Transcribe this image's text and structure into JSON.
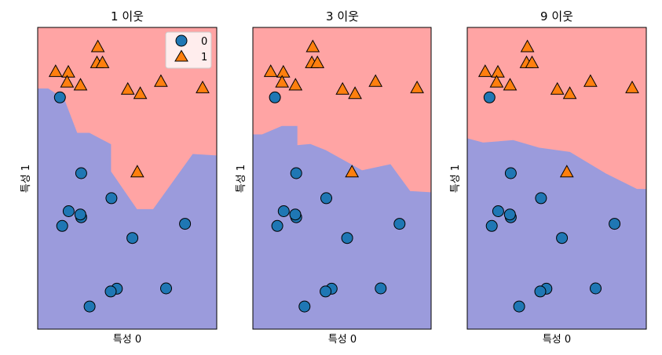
{
  "chart_data": [
    {
      "type": "scatter",
      "title": "1 이웃",
      "xlabel": "특성 0",
      "ylabel": "특성 1",
      "xlim": [
        0,
        100
      ],
      "ylim": [
        0,
        100
      ],
      "ticks": "hidden",
      "legend": {
        "placement": "top-right",
        "entries": [
          {
            "label": "0",
            "marker": "circle",
            "color": "#1f77b4"
          },
          {
            "label": "1",
            "marker": "triangle",
            "color": "#ff7f0e"
          }
        ]
      },
      "regions": [
        {
          "class": "1",
          "color": "#ffa4a4"
        },
        {
          "class": "0",
          "color": "#9b9bdc"
        }
      ],
      "boundary": [
        [
          0,
          79.6
        ],
        [
          5.8,
          79.6
        ],
        [
          14.6,
          76.2
        ],
        [
          21.9,
          64.9
        ],
        [
          28.8,
          64.9
        ],
        [
          40.7,
          61.2
        ],
        [
          40.7,
          52.2
        ],
        [
          55.3,
          39.6
        ],
        [
          64.6,
          39.6
        ],
        [
          86.7,
          57.9
        ],
        [
          100,
          57.4
        ]
      ],
      "series": [
        {
          "name": "0",
          "marker": "circle",
          "color": "#1f77b4",
          "x": [
            12.4,
            24.3,
            17.3,
            24.3,
            13.7,
            23.8,
            41.2,
            52.9,
            82.3,
            71.7,
            44.2,
            40.8,
            29.0
          ],
          "y": [
            76.8,
            51.7,
            39.1,
            37.1,
            34.2,
            38.0,
            43.4,
            30.2,
            34.9,
            13.5,
            13.4,
            12.5,
            7.5
          ]
        },
        {
          "name": "1",
          "marker": "triangle",
          "color": "#ff7f0e",
          "x": [
            33.6,
            33.1,
            36.2,
            10.0,
            17.1,
            16.4,
            23.9,
            50.3,
            68.8,
            57.3,
            92.1,
            55.6
          ],
          "y": [
            93.5,
            88.2,
            88.2,
            85.3,
            85.1,
            81.8,
            80.8,
            79.4,
            82.0,
            78.0,
            79.9,
            52.0
          ]
        }
      ]
    },
    {
      "type": "scatter",
      "title": "3 이웃",
      "xlabel": "특성 0",
      "ylabel": "특성 1",
      "xlim": [
        0,
        100
      ],
      "ylim": [
        0,
        100
      ],
      "ticks": "hidden",
      "regions": [
        {
          "class": "1",
          "color": "#ffa4a4"
        },
        {
          "class": "0",
          "color": "#9b9bdc"
        }
      ],
      "boundary": [
        [
          0,
          64.4
        ],
        [
          5.3,
          64.4
        ],
        [
          16.3,
          67.2
        ],
        [
          24.7,
          67.2
        ],
        [
          24.7,
          60.8
        ],
        [
          32.2,
          61.2
        ],
        [
          40.7,
          59.2
        ],
        [
          61.2,
          52.5
        ],
        [
          77.1,
          54.5
        ],
        [
          88.1,
          45.6
        ],
        [
          100,
          45.2
        ]
      ],
      "series": [
        {
          "name": "0",
          "marker": "circle",
          "color": "#1f77b4",
          "x": [
            12.4,
            24.3,
            17.3,
            24.3,
            13.7,
            23.8,
            41.2,
            52.9,
            82.3,
            71.7,
            44.2,
            40.8,
            29.0
          ],
          "y": [
            76.8,
            51.7,
            39.1,
            37.1,
            34.2,
            38.0,
            43.4,
            30.2,
            34.9,
            13.5,
            13.4,
            12.5,
            7.5
          ]
        },
        {
          "name": "1",
          "marker": "triangle",
          "color": "#ff7f0e",
          "x": [
            33.6,
            33.1,
            36.2,
            10.0,
            17.1,
            16.4,
            23.9,
            50.3,
            68.8,
            57.3,
            92.1,
            55.6
          ],
          "y": [
            93.5,
            88.2,
            88.2,
            85.3,
            85.1,
            81.8,
            80.8,
            79.4,
            82.0,
            78.0,
            79.9,
            52.0
          ]
        }
      ]
    },
    {
      "type": "scatter",
      "title": "9 이웃",
      "xlabel": "특성 0",
      "ylabel": "특성 1",
      "xlim": [
        0,
        100
      ],
      "ylim": [
        0,
        100
      ],
      "ticks": "hidden",
      "regions": [
        {
          "class": "1",
          "color": "#ffa4a4"
        },
        {
          "class": "0",
          "color": "#9b9bdc"
        }
      ],
      "boundary": [
        [
          0,
          63.1
        ],
        [
          8.8,
          61.7
        ],
        [
          25.6,
          62.5
        ],
        [
          40.0,
          60.0
        ],
        [
          57.3,
          58.6
        ],
        [
          77.1,
          51.5
        ],
        [
          94.7,
          46.3
        ],
        [
          100,
          46.3
        ]
      ],
      "series": [
        {
          "name": "0",
          "marker": "circle",
          "color": "#1f77b4",
          "x": [
            12.4,
            24.3,
            17.3,
            24.3,
            13.7,
            23.8,
            41.2,
            52.9,
            82.3,
            71.7,
            44.2,
            40.8,
            29.0
          ],
          "y": [
            76.8,
            51.7,
            39.1,
            37.1,
            34.2,
            38.0,
            43.4,
            30.2,
            34.9,
            13.5,
            13.4,
            12.5,
            7.5
          ]
        },
        {
          "name": "1",
          "marker": "triangle",
          "color": "#ff7f0e",
          "x": [
            33.6,
            33.1,
            36.2,
            10.0,
            17.1,
            16.4,
            23.9,
            50.3,
            68.8,
            57.3,
            92.1,
            55.6
          ],
          "y": [
            93.5,
            88.2,
            88.2,
            85.3,
            85.1,
            81.8,
            80.8,
            79.4,
            82.0,
            78.0,
            79.9,
            52.0
          ]
        }
      ]
    }
  ]
}
